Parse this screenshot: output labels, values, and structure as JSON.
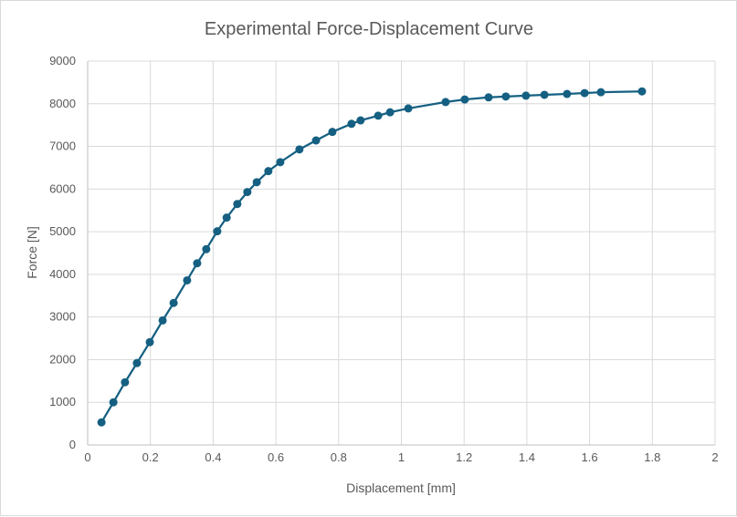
{
  "chart_data": {
    "type": "line",
    "title": "Experimental Force-Displacement Curve",
    "xlabel": "Displacement [mm]",
    "ylabel": "Force [N]",
    "xlim": [
      0,
      2
    ],
    "ylim": [
      0,
      9000
    ],
    "xticks": [
      "0",
      "0.2",
      "0.4",
      "0.6",
      "0.8",
      "1",
      "1.2",
      "1.4",
      "1.6",
      "1.8",
      "2"
    ],
    "yticks": [
      "0",
      "1000",
      "2000",
      "3000",
      "4000",
      "5000",
      "6000",
      "7000",
      "8000",
      "9000"
    ],
    "grid": true,
    "markers": true,
    "color": "#156082",
    "x": [
      0.044,
      0.082,
      0.119,
      0.157,
      0.198,
      0.239,
      0.274,
      0.317,
      0.349,
      0.378,
      0.413,
      0.443,
      0.477,
      0.509,
      0.539,
      0.576,
      0.614,
      0.675,
      0.728,
      0.78,
      0.841,
      0.87,
      0.926,
      0.964,
      1.022,
      1.141,
      1.202,
      1.278,
      1.333,
      1.397,
      1.456,
      1.528,
      1.584,
      1.636,
      1.767
    ],
    "y": [
      530,
      1000,
      1470,
      1920,
      2410,
      2920,
      3330,
      3860,
      4260,
      4590,
      5010,
      5330,
      5650,
      5930,
      6160,
      6420,
      6630,
      6930,
      7140,
      7340,
      7530,
      7610,
      7720,
      7800,
      7890,
      8040,
      8100,
      8150,
      8170,
      8190,
      8210,
      8230,
      8250,
      8270,
      8290
    ]
  }
}
